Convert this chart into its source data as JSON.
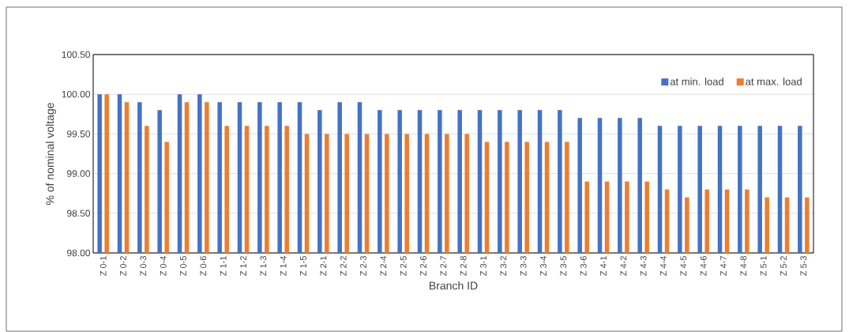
{
  "chart_data": {
    "type": "bar",
    "xlabel": "Branch ID",
    "ylabel": "% of nominal voltage",
    "categories": [
      "Z 0-1",
      "Z 0-2",
      "Z 0-3",
      "Z 0-4",
      "Z 0-5",
      "Z 0-6",
      "Z 1-1",
      "Z 1-2",
      "Z 1-3",
      "Z 1-4",
      "Z 1-5",
      "Z 2-1",
      "Z 2-2",
      "Z 2-3",
      "Z 2-4",
      "Z 2-5",
      "Z 2-6",
      "Z 2-7",
      "Z 2-8",
      "Z 3-1",
      "Z 3-2",
      "Z 3-3",
      "Z 3-4",
      "Z 3-5",
      "Z 3-6",
      "Z 4-1",
      "Z 4-2",
      "Z 4-3",
      "Z 4-4",
      "Z 4-5",
      "Z 4-6",
      "Z 4-7",
      "Z 4-8",
      "Z 5-1",
      "Z 5-2",
      "Z 5-3"
    ],
    "series": [
      {
        "name": "at min. load",
        "color": "#4472c4",
        "values": [
          100.0,
          100.0,
          99.9,
          99.8,
          100.0,
          100.0,
          99.9,
          99.9,
          99.9,
          99.9,
          99.9,
          99.8,
          99.9,
          99.9,
          99.8,
          99.8,
          99.8,
          99.8,
          99.8,
          99.8,
          99.8,
          99.8,
          99.8,
          99.8,
          99.7,
          99.7,
          99.7,
          99.7,
          99.6,
          99.6,
          99.6,
          99.6,
          99.6,
          99.6,
          99.6,
          99.6
        ]
      },
      {
        "name": "at max. load",
        "color": "#ed7d31",
        "values": [
          100.0,
          99.9,
          99.6,
          99.4,
          99.9,
          99.9,
          99.6,
          99.6,
          99.6,
          99.6,
          99.5,
          99.5,
          99.5,
          99.5,
          99.5,
          99.5,
          99.5,
          99.5,
          99.5,
          99.4,
          99.4,
          99.4,
          99.4,
          99.4,
          98.9,
          98.9,
          98.9,
          98.9,
          98.8,
          98.7,
          98.8,
          98.8,
          98.8,
          98.7,
          98.7,
          98.7
        ]
      }
    ],
    "ylim": [
      98.0,
      100.5
    ],
    "yticks": [
      {
        "value": 98.0,
        "label": "98.00"
      },
      {
        "value": 98.5,
        "label": "98.50"
      },
      {
        "value": 99.0,
        "label": "99.00"
      },
      {
        "value": 99.5,
        "label": "99.50"
      },
      {
        "value": 100.0,
        "label": "100.00"
      },
      {
        "value": 100.5,
        "label": "100.50"
      }
    ],
    "grid": "y",
    "legend": "top right"
  }
}
